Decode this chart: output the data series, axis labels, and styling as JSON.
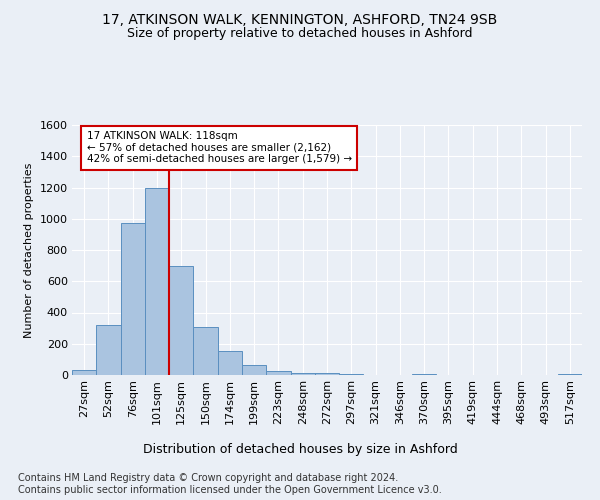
{
  "title1": "17, ATKINSON WALK, KENNINGTON, ASHFORD, TN24 9SB",
  "title2": "Size of property relative to detached houses in Ashford",
  "xlabel": "Distribution of detached houses by size in Ashford",
  "ylabel": "Number of detached properties",
  "footnote": "Contains HM Land Registry data © Crown copyright and database right 2024.\nContains public sector information licensed under the Open Government Licence v3.0.",
  "bar_categories": [
    "27sqm",
    "52sqm",
    "76sqm",
    "101sqm",
    "125sqm",
    "150sqm",
    "174sqm",
    "199sqm",
    "223sqm",
    "248sqm",
    "272sqm",
    "297sqm",
    "321sqm",
    "346sqm",
    "370sqm",
    "395sqm",
    "419sqm",
    "444sqm",
    "468sqm",
    "493sqm",
    "517sqm"
  ],
  "bar_values": [
    30,
    320,
    970,
    1200,
    700,
    310,
    155,
    65,
    25,
    13,
    10,
    5,
    0,
    0,
    8,
    0,
    0,
    0,
    0,
    0,
    8
  ],
  "bar_color": "#aac4e0",
  "bar_edgecolor": "#5a8fc0",
  "annotation_box_text": "17 ATKINSON WALK: 118sqm\n← 57% of detached houses are smaller (2,162)\n42% of semi-detached houses are larger (1,579) →",
  "annotation_box_color": "#cc0000",
  "annotation_box_facecolor": "white",
  "vline_color": "#cc0000",
  "ylim": [
    0,
    1600
  ],
  "yticks": [
    0,
    200,
    400,
    600,
    800,
    1000,
    1200,
    1400,
    1600
  ],
  "bg_color": "#eaeff6",
  "plot_bg_color": "#eaeff6",
  "grid_color": "#ffffff",
  "title1_fontsize": 10,
  "title2_fontsize": 9,
  "xlabel_fontsize": 9,
  "ylabel_fontsize": 8,
  "tick_fontsize": 8,
  "footnote_fontsize": 7
}
